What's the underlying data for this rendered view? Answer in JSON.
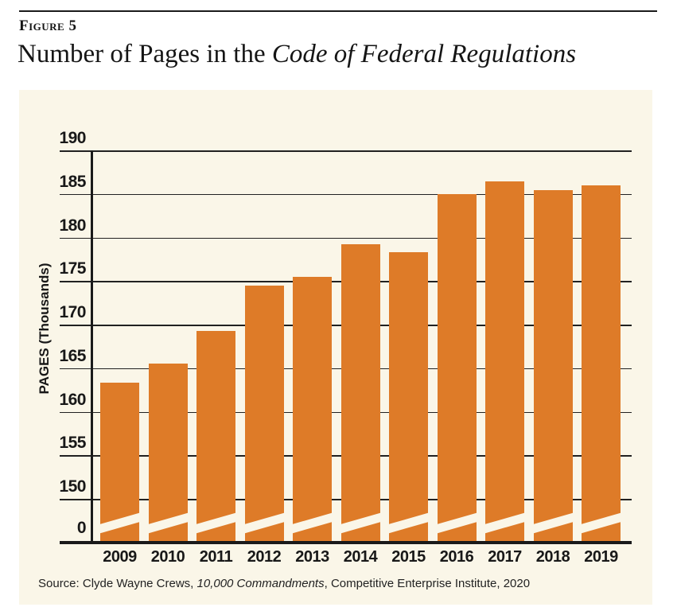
{
  "figure": {
    "label": "Figure 5",
    "title_plain": "Number of Pages in the ",
    "title_italic": "Code of Federal Regulations"
  },
  "source": {
    "prefix": "Source: Clyde Wayne Crews, ",
    "work_italic": "10,000 Commandments",
    "suffix": ", Competitive Enterprise Institute, 2020"
  },
  "chart_data": {
    "type": "bar",
    "title": "Number of Pages in the Code of Federal Regulations",
    "categories": [
      "2009",
      "2010",
      "2011",
      "2012",
      "2013",
      "2014",
      "2015",
      "2016",
      "2017",
      "2018",
      "2019"
    ],
    "values": [
      163.3,
      165.5,
      169.3,
      174.5,
      175.5,
      179.2,
      178.3,
      185.0,
      186.4,
      185.4,
      186.0
    ],
    "xlabel": "",
    "ylabel": "PAGES (Thousands)",
    "y_ticks": [
      190,
      185,
      180,
      175,
      170,
      165,
      160,
      155,
      150,
      0
    ],
    "ylim": [
      150,
      190
    ],
    "axis_break": true,
    "grid": true,
    "legend": "none",
    "bar_color": "#DE7B28",
    "plot_background_color": "#FAF6E8",
    "page_background_color": "#FFFFFF",
    "line_color": "#1A1A1A"
  }
}
